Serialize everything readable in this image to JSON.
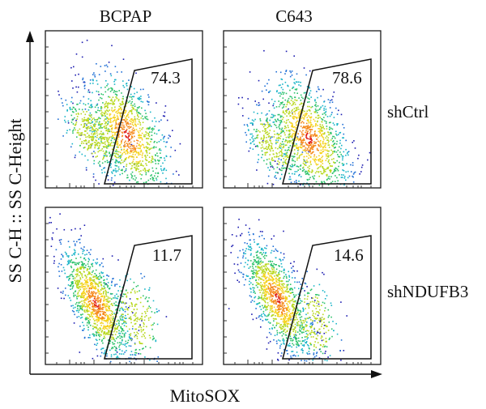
{
  "chart_data": {
    "type": "scatter",
    "subtype": "flow-cytometry-density-grid",
    "columns": [
      "BCPAP",
      "C643"
    ],
    "rows": [
      "shCtrl",
      "shNDUFB3"
    ],
    "xlabel": "MitoSOX",
    "ylabel": "SS C-H :: SS C-Height",
    "panels": [
      {
        "row": "shCtrl",
        "column": "BCPAP",
        "gate_value": "74.3"
      },
      {
        "row": "shCtrl",
        "column": "C643",
        "gate_value": "78.6"
      },
      {
        "row": "shNDUFB3",
        "column": "BCPAP",
        "gate_value": "11.7"
      },
      {
        "row": "shNDUFB3",
        "column": "C643",
        "gate_value": "14.6"
      }
    ],
    "colormap": [
      "#1b1bb0",
      "#1f6fd6",
      "#19b5c8",
      "#2cc26a",
      "#b8d81f",
      "#f5d21c",
      "#f5891c",
      "#e0231c"
    ]
  }
}
